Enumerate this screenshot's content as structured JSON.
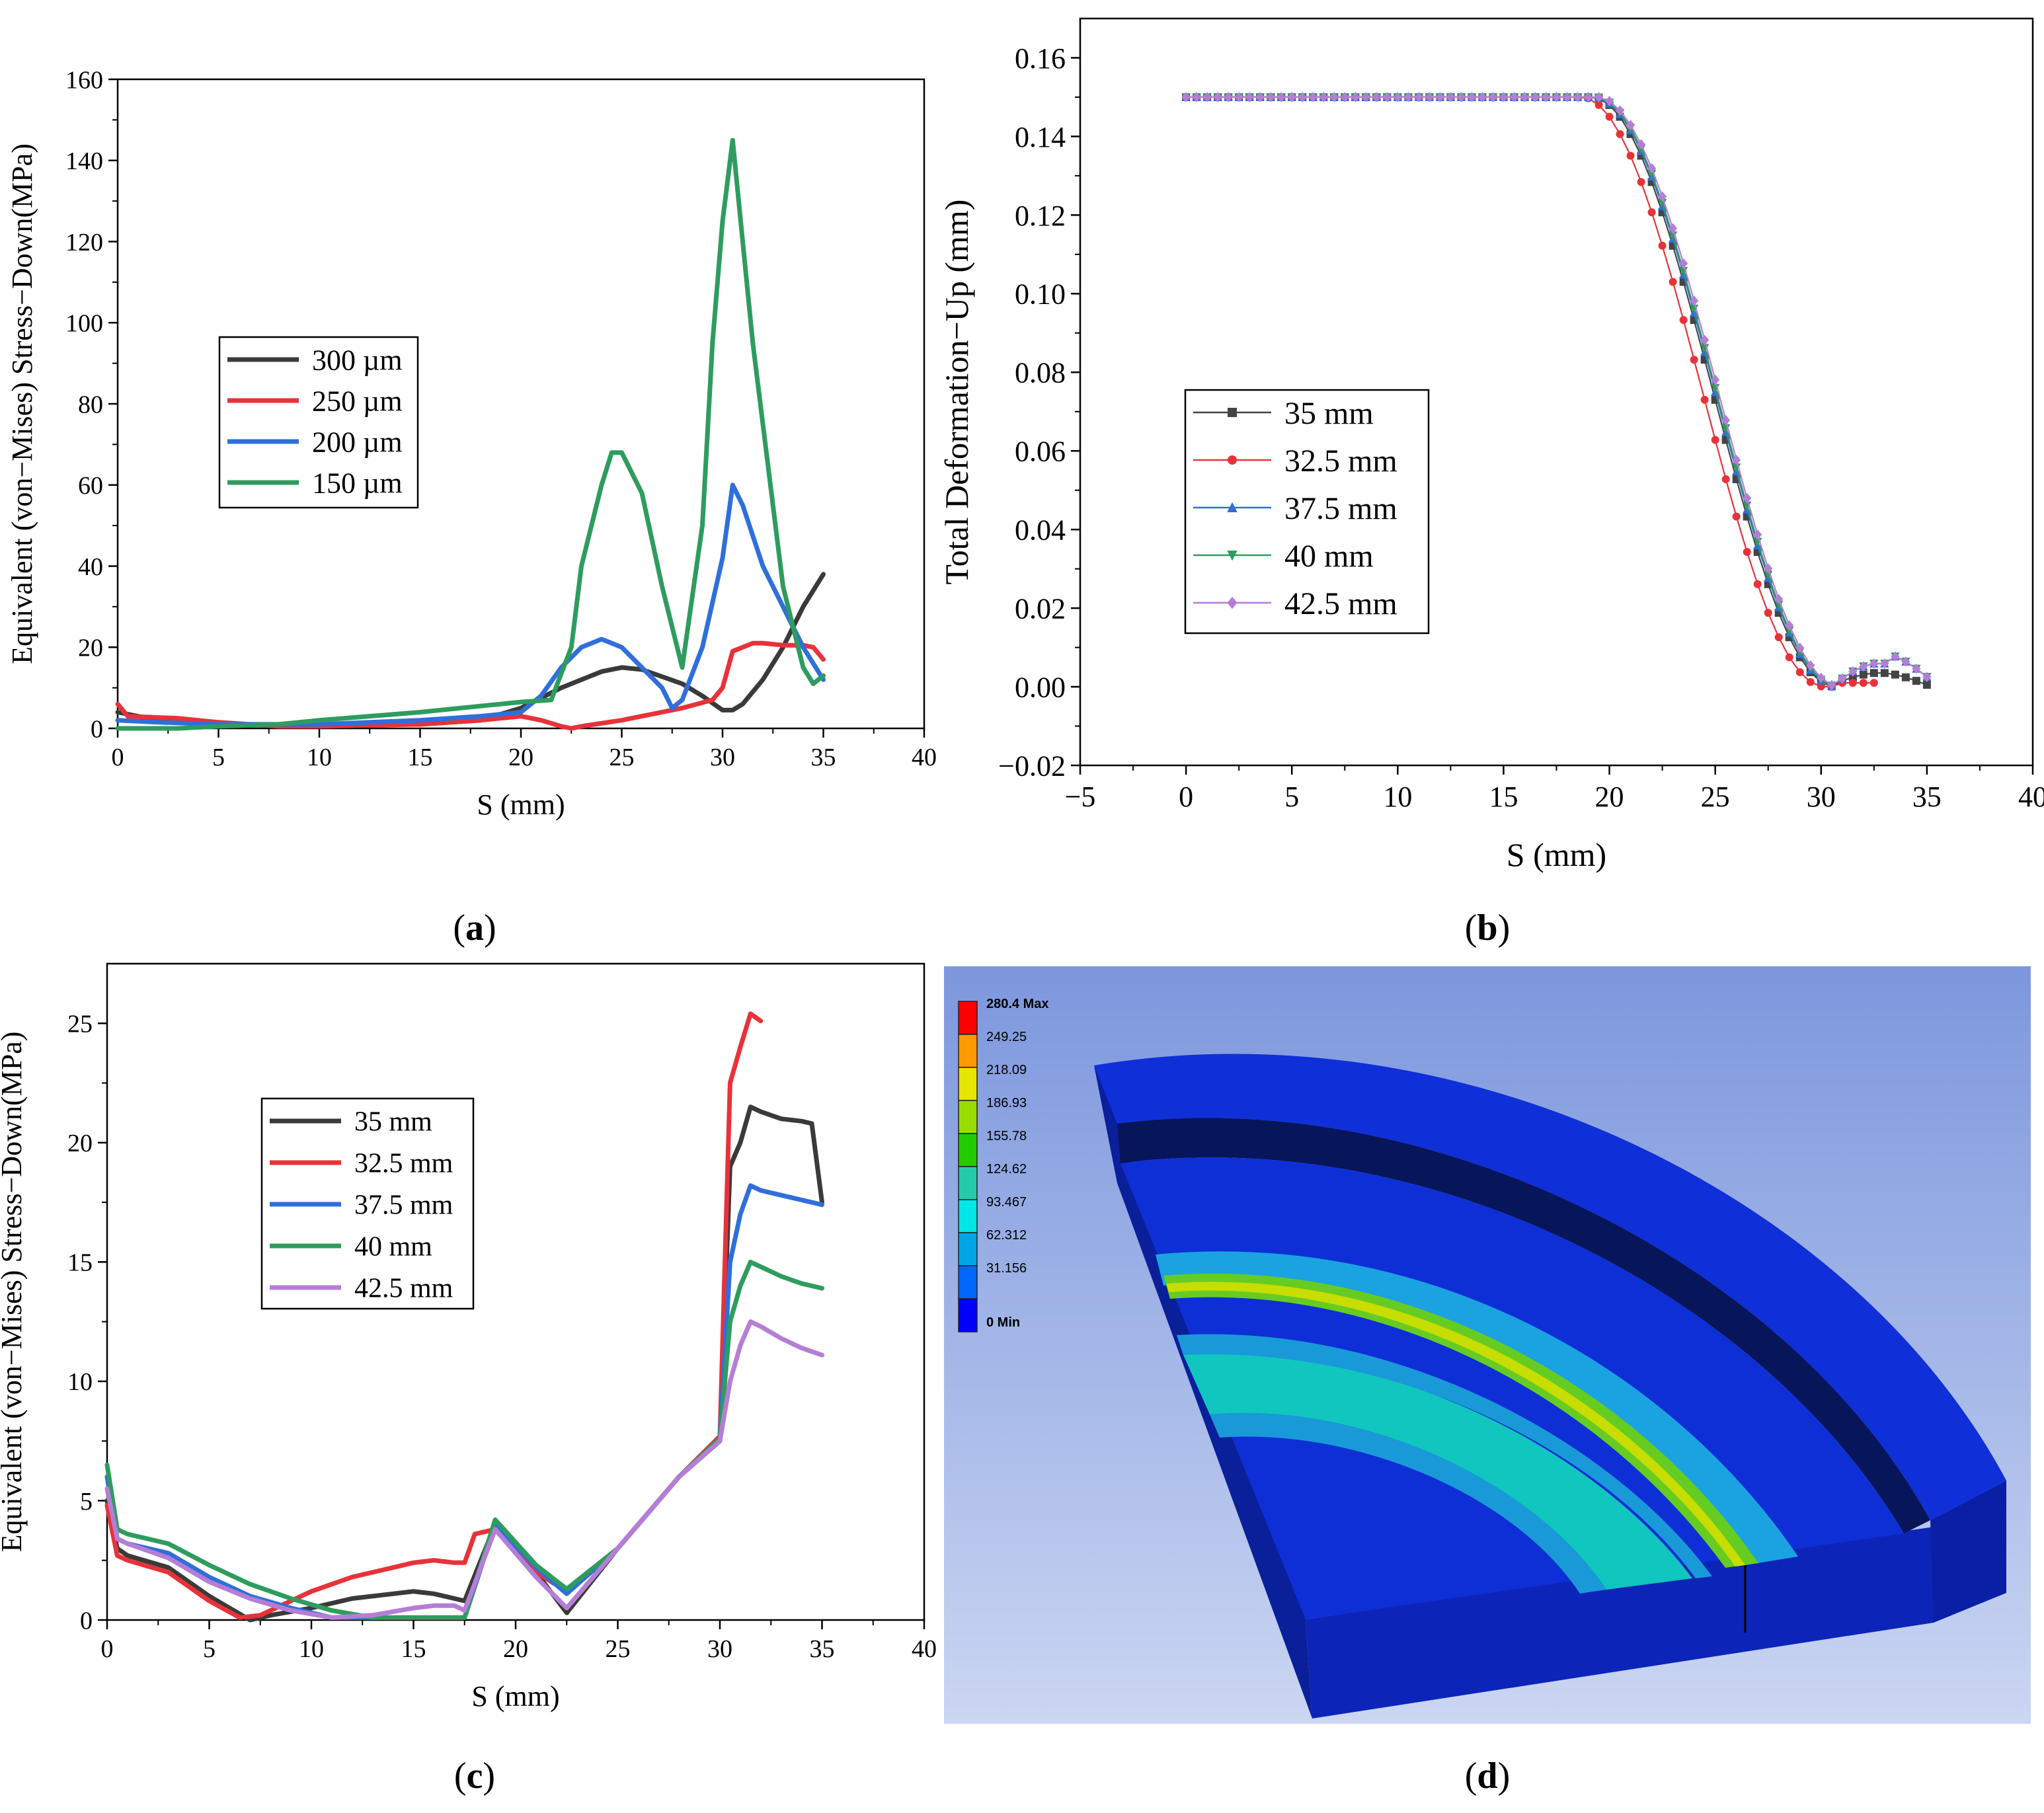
{
  "panel_labels": {
    "a": "a",
    "b": "b",
    "c": "c",
    "d": "d"
  },
  "chart_data": [
    {
      "id": "a",
      "type": "line",
      "xlabel": "S (mm)",
      "ylabel": "Equivalent (von−Mises) Stress−Down(MPa)",
      "xlim": [
        0,
        40
      ],
      "ylim": [
        0,
        160
      ],
      "xticks": [
        0,
        5,
        10,
        15,
        20,
        25,
        30,
        35,
        40
      ],
      "yticks": [
        0,
        20,
        40,
        60,
        80,
        100,
        120,
        140,
        160
      ],
      "legend_position": "upper-left-middle",
      "series": [
        {
          "name": "300 µm",
          "color": "#3a3a3a",
          "x": [
            0,
            2,
            5,
            8,
            10,
            15,
            18,
            20,
            22,
            24,
            25,
            26,
            28,
            29,
            30,
            30.5,
            31,
            32,
            33,
            34,
            35
          ],
          "y": [
            4,
            2,
            1,
            0.8,
            0.8,
            1,
            2,
            5,
            10,
            14,
            15,
            14.5,
            11,
            8,
            4.5,
            4.5,
            6,
            12,
            20,
            30,
            38
          ]
        },
        {
          "name": "250 µm",
          "color": "#e8323a",
          "x": [
            0,
            0.5,
            3,
            5,
            8,
            10,
            15,
            18,
            20,
            21,
            22,
            22.5,
            23,
            25,
            28,
            29.5,
            30,
            30.5,
            31,
            31.5,
            32,
            33,
            34,
            34.5,
            35
          ],
          "y": [
            6,
            3,
            2.5,
            1.5,
            0.5,
            0.5,
            1,
            2,
            3,
            2,
            0.5,
            0,
            0.5,
            2,
            5,
            7,
            10,
            19,
            20,
            21,
            21,
            20.5,
            20.5,
            20,
            17
          ]
        },
        {
          "name": "200 µm",
          "color": "#2f6fdb",
          "x": [
            0,
            2,
            5,
            8,
            10,
            15,
            18,
            20,
            21,
            22,
            23,
            24,
            25,
            26,
            27,
            27.5,
            28,
            29,
            30,
            30.5,
            31,
            32,
            33,
            34,
            35
          ],
          "y": [
            2,
            1.5,
            1,
            1,
            1,
            2,
            3,
            4,
            8,
            15,
            20,
            22,
            20,
            15,
            10,
            5,
            7,
            20,
            42,
            60,
            55,
            40,
            30,
            20,
            12
          ]
        },
        {
          "name": "150 µm",
          "color": "#2e9c5e",
          "x": [
            0,
            3,
            5,
            8,
            10,
            15,
            18,
            20,
            21.5,
            22.5,
            23,
            24,
            24.5,
            25,
            26,
            27,
            28,
            29,
            29.5,
            30,
            30.5,
            31,
            31.5,
            32,
            33,
            34,
            34.5,
            35
          ],
          "y": [
            0,
            0,
            0.5,
            1,
            2,
            4,
            5.5,
            6.5,
            7,
            20,
            40,
            60,
            68,
            68,
            58,
            35,
            15,
            50,
            95,
            125,
            145,
            120,
            95,
            75,
            35,
            15,
            11,
            13
          ]
        }
      ]
    },
    {
      "id": "b",
      "type": "line",
      "xlabel": "S (mm)",
      "ylabel": "Total Deformation−Up (mm)",
      "xlim": [
        -5,
        40
      ],
      "ylim": [
        -0.02,
        0.17
      ],
      "xticks": [
        -5,
        0,
        5,
        10,
        15,
        20,
        25,
        30,
        35,
        40
      ],
      "yticks": [
        -0.02,
        0.0,
        0.02,
        0.04,
        0.06,
        0.08,
        0.1,
        0.12,
        0.14,
        0.16
      ],
      "ytick_labels": [
        "−0.02",
        "0.00",
        "0.02",
        "0.04",
        "0.06",
        "0.08",
        "0.10",
        "0.12",
        "0.14",
        "0.16"
      ],
      "legend_position": "lower-left",
      "series": [
        {
          "name": "35 mm",
          "color": "#444444",
          "marker": "square",
          "shift": 0.15,
          "tail": "a"
        },
        {
          "name": "32.5 mm",
          "color": "#e8323a",
          "marker": "circle",
          "shift": -0.35,
          "tail": "b"
        },
        {
          "name": "37.5 mm",
          "color": "#2f6fdb",
          "marker": "triangle",
          "shift": 0.25,
          "tail": "c"
        },
        {
          "name": "40 mm",
          "color": "#2e9c5e",
          "marker": "triangle-down",
          "shift": 0.3,
          "tail": "c"
        },
        {
          "name": "42.5 mm",
          "color": "#b57ed6",
          "marker": "diamond",
          "shift": 0.4,
          "tail": "c"
        }
      ]
    },
    {
      "id": "c",
      "type": "line",
      "xlabel": "S (mm)",
      "ylabel": "Equivalent (von−Mises) Stress−Down(MPa)",
      "xlim": [
        0,
        40
      ],
      "ylim": [
        0,
        27.5
      ],
      "xticks": [
        0,
        5,
        10,
        15,
        20,
        25,
        30,
        35,
        40
      ],
      "yticks": [
        0,
        5,
        10,
        15,
        20,
        25
      ],
      "legend_position": "upper-left-middle",
      "series": [
        {
          "name": "35 mm",
          "color": "#3a3a3a",
          "x": [
            0,
            0.5,
            1,
            3,
            5,
            7,
            8,
            10,
            12,
            14,
            15,
            16,
            17,
            17.5,
            19,
            21,
            22.5,
            25,
            28,
            30,
            30.5,
            31,
            31.5,
            32,
            33,
            34,
            34.5,
            35
          ],
          "y": [
            5,
            3,
            2.7,
            2.2,
            1,
            0,
            0.2,
            0.5,
            0.9,
            1.1,
            1.2,
            1.1,
            0.9,
            0.8,
            4,
            2,
            0.3,
            3,
            6,
            7.5,
            19,
            20,
            21.5,
            21.3,
            21,
            20.9,
            20.8,
            17.5
          ]
        },
        {
          "name": "32.5 mm",
          "color": "#e8323a",
          "x": [
            0,
            0.5,
            1,
            3,
            5,
            6.5,
            7.5,
            10,
            12,
            14,
            15,
            16,
            17,
            17.5,
            18,
            19,
            21,
            22.5,
            25,
            28,
            30,
            30.5,
            31,
            31.5,
            32
          ],
          "y": [
            4.8,
            2.7,
            2.5,
            2,
            0.8,
            0.1,
            0.2,
            1.2,
            1.8,
            2.2,
            2.4,
            2.5,
            2.4,
            2.4,
            3.6,
            3.8,
            2,
            1.2,
            3,
            6,
            7.7,
            22.5,
            24,
            25.4,
            25.1
          ]
        },
        {
          "name": "37.5 mm",
          "color": "#2f6fdb",
          "x": [
            0,
            0.5,
            1,
            3,
            5,
            7,
            9,
            11,
            13,
            15,
            17,
            17.5,
            19,
            21,
            22.5,
            25,
            28,
            30,
            30.5,
            31,
            31.5,
            32,
            33,
            34,
            35
          ],
          "y": [
            6,
            3.4,
            3.2,
            2.8,
            1.8,
            1,
            0.5,
            0.1,
            0.1,
            0.1,
            0.1,
            0.1,
            4,
            2.2,
            1.1,
            3,
            6,
            7.6,
            15,
            17,
            18.2,
            18,
            17.8,
            17.6,
            17.4
          ]
        },
        {
          "name": "40 mm",
          "color": "#2e9c5e",
          "x": [
            0,
            0.5,
            1,
            3,
            5,
            7,
            9,
            11,
            13,
            15,
            17,
            17.5,
            19,
            21,
            22.5,
            25,
            28,
            30,
            30.5,
            31,
            31.5,
            32,
            33,
            34,
            35
          ],
          "y": [
            6.5,
            3.8,
            3.6,
            3.2,
            2.3,
            1.5,
            0.9,
            0.4,
            0.1,
            0.1,
            0.1,
            0.1,
            4.2,
            2.3,
            1.3,
            3,
            6,
            7.6,
            12.5,
            14,
            15,
            14.8,
            14.4,
            14.1,
            13.9
          ]
        },
        {
          "name": "42.5 mm",
          "color": "#b57ed6",
          "x": [
            0,
            0.5,
            1,
            3,
            5,
            7,
            9,
            11,
            13,
            15,
            16,
            17,
            17.5,
            19,
            21,
            22.5,
            25,
            28,
            30,
            30.5,
            31,
            31.5,
            32,
            33,
            34,
            35
          ],
          "y": [
            5.5,
            3.4,
            3.2,
            2.6,
            1.6,
            0.9,
            0.4,
            0.1,
            0.2,
            0.5,
            0.6,
            0.6,
            0.4,
            3.8,
            1.8,
            0.5,
            3,
            6,
            7.5,
            10,
            11.5,
            12.5,
            12.3,
            11.8,
            11.4,
            11.1
          ]
        }
      ]
    }
  ],
  "colorbar": {
    "labels": [
      "280.4 Max",
      "249.25",
      "218.09",
      "186.93",
      "155.78",
      "124.62",
      "93.467",
      "62.312",
      "31.156",
      "0 Min"
    ],
    "colors": [
      "#ff0000",
      "#ff9900",
      "#e6e600",
      "#99dd00",
      "#22cc00",
      "#22ccaa",
      "#00e5e5",
      "#00a6e6",
      "#0066ff",
      "#0000ff"
    ]
  }
}
